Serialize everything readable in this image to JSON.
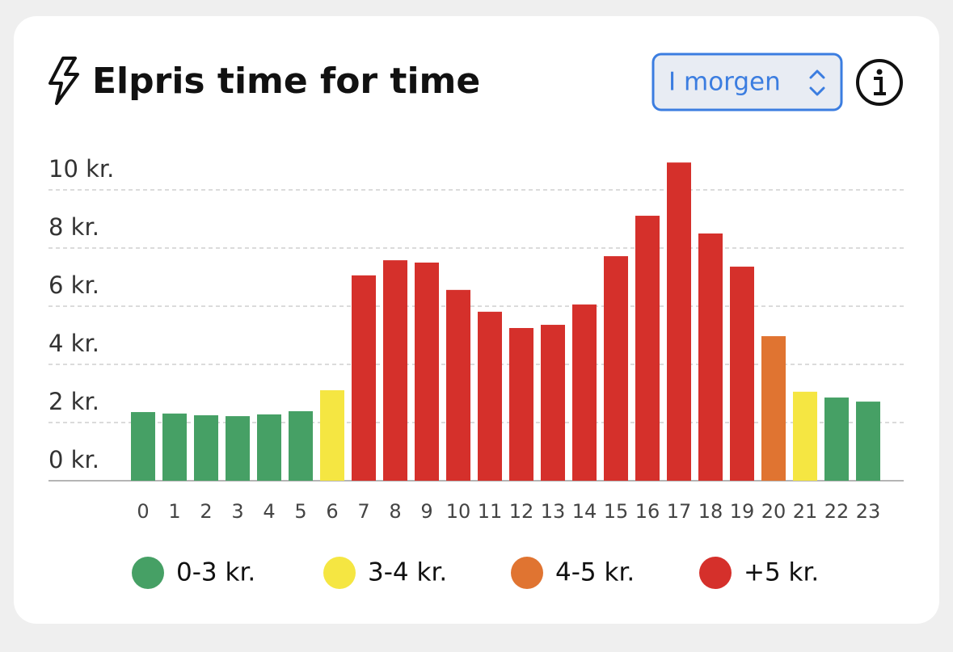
{
  "header": {
    "title": "Elpris time for time",
    "select": "I morgen"
  },
  "chart_data": {
    "type": "bar",
    "categories": [
      "0",
      "1",
      "2",
      "3",
      "4",
      "5",
      "6",
      "7",
      "8",
      "9",
      "10",
      "11",
      "12",
      "13",
      "14",
      "15",
      "16",
      "17",
      "18",
      "19",
      "20",
      "21",
      "22",
      "23"
    ],
    "values": [
      2.36,
      2.31,
      2.25,
      2.22,
      2.28,
      2.39,
      3.11,
      7.06,
      7.58,
      7.5,
      6.56,
      5.81,
      5.25,
      5.36,
      6.06,
      7.72,
      9.11,
      10.94,
      8.5,
      7.36,
      4.97,
      3.06,
      2.86,
      2.72
    ],
    "colors": [
      "#46a065",
      "#46a065",
      "#46a065",
      "#46a065",
      "#46a065",
      "#46a065",
      "#f5e642",
      "#d5302b",
      "#d5302b",
      "#d5302b",
      "#d5302b",
      "#d5302b",
      "#d5302b",
      "#d5302b",
      "#d5302b",
      "#d5302b",
      "#d5302b",
      "#d5302b",
      "#d5302b",
      "#d5302b",
      "#e07431",
      "#f5e642",
      "#46a065",
      "#46a065"
    ],
    "ylim": [
      0,
      11
    ],
    "yticks": [
      {
        "value": 0,
        "label": "0 kr."
      },
      {
        "value": 2,
        "label": "2 kr."
      },
      {
        "value": 4,
        "label": "4 kr."
      },
      {
        "value": 6,
        "label": "6 kr."
      },
      {
        "value": 8,
        "label": "8 kr."
      },
      {
        "value": 10,
        "label": "10 kr."
      }
    ],
    "grid": true,
    "legend": [
      {
        "name": "0-3 kr.",
        "color": "#46a065"
      },
      {
        "name": "3-4 kr.",
        "color": "#f5e642"
      },
      {
        "name": "4-5 kr.",
        "color": "#e07431"
      },
      {
        "name": "+5 kr.",
        "color": "#d5302b"
      }
    ]
  }
}
